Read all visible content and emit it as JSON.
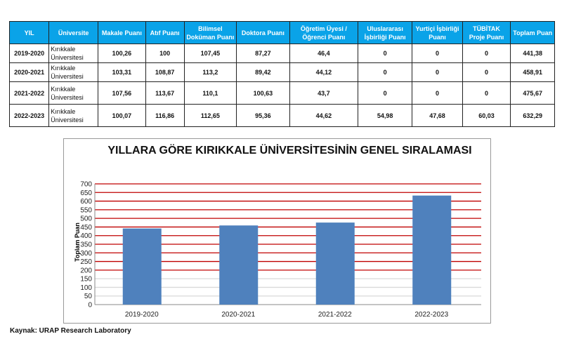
{
  "table": {
    "headers": [
      "YIL",
      "Üniversite",
      "Makale Puanı",
      "Atıf Puanı",
      "Bilimsel Doküman Puanı",
      "Doktora Puanı",
      "Öğretim Üyesi / Öğrenci Puanı",
      "Uluslararası İşbirliği Puanı",
      "Yurtiçi İşbirliği Puanı",
      "TÜBİTAK Proje Puanı",
      "Toplam Puan"
    ],
    "rows": [
      [
        "2019-2020",
        "Kırıkkale Üniversitesi",
        "100,26",
        "100",
        "107,45",
        "87,27",
        "46,4",
        "0",
        "0",
        "0",
        "441,38"
      ],
      [
        "2020-2021",
        "Kırıkkale Üniversitesi",
        "103,31",
        "108,87",
        "113,2",
        "89,42",
        "44,12",
        "0",
        "0",
        "0",
        "458,91"
      ],
      [
        "2021-2022",
        "Kırıkkale Üniversitesi",
        "107,56",
        "113,67",
        "110,1",
        "100,63",
        "43,7",
        "0",
        "0",
        "0",
        "475,67"
      ],
      [
        "2022-2023",
        "Kırıkkale Üniversitesi",
        "100,07",
        "116,86",
        "112,65",
        "95,36",
        "44,62",
        "54,98",
        "47,68",
        "60,03",
        "632,29"
      ]
    ]
  },
  "chart_data": {
    "type": "bar",
    "title": "YILLARA GÖRE KIRIKKALE ÜNİVERSİTESİNİN GENEL SIRALAMASI",
    "ylabel": "Toplam Puan",
    "xlabel": "",
    "categories": [
      "2019-2020",
      "2020-2021",
      "2021-2022",
      "2022-2023"
    ],
    "values": [
      441.38,
      458.91,
      475.67,
      632.29
    ],
    "ylim": [
      0,
      700
    ],
    "yticks": [
      0,
      50,
      100,
      150,
      200,
      250,
      300,
      350,
      400,
      450,
      500,
      550,
      600,
      650,
      700
    ],
    "grid": true,
    "bar_color": "#4f81bd",
    "grid_color_major": "#c00000",
    "grid_color_minor": "#d9d9d9"
  },
  "source": "Kaynak: URAP Research Laboratory"
}
